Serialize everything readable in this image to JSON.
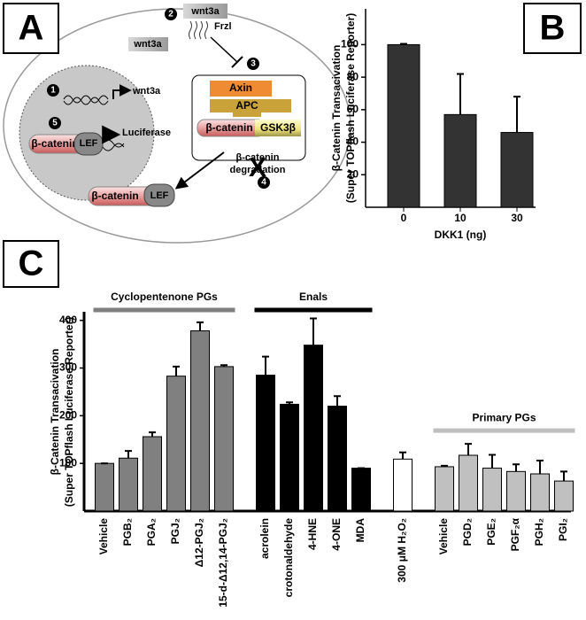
{
  "diagram": {
    "label": "A",
    "steps": [
      "1",
      "2",
      "3",
      "4",
      "5"
    ],
    "ligand_top": "wnt3a",
    "receptor": "Frzl",
    "ligand_free": "wnt3a",
    "gene": "wnt3a",
    "complex": {
      "axin": "Axin",
      "apc": "APC",
      "beta_catenin": "β-catenin",
      "gsk3b": "GSK3β"
    },
    "degradation_mark": "X",
    "degradation": [
      "β-catenin",
      "degradation"
    ],
    "nuclear": {
      "beta_catenin": "β-catenin",
      "lef": "LEF",
      "reporter": "Luciferase"
    },
    "cytoplasmic": {
      "beta_catenin": "β-catenin",
      "lef": "LEF"
    }
  },
  "chart_data": [
    {
      "type": "bar",
      "panel": "B",
      "ylabel": [
        "β-Catenin Transacivation",
        "(Super TOPflash Luciferase Reporter)"
      ],
      "xlabel": "DKK1 (ng)",
      "categories": [
        "0",
        "10",
        "30"
      ],
      "values": [
        100,
        57,
        46
      ],
      "errors": [
        0.5,
        25,
        22
      ],
      "color": "#333333",
      "ylim": [
        0,
        122
      ],
      "yticks": [
        20,
        40,
        60,
        80,
        100
      ]
    },
    {
      "type": "bar",
      "panel": "C",
      "ylabel": [
        "β-Catenin Transacivation",
        "(Super TOPflash Luciferase Reporter)"
      ],
      "categories": [
        "Vehicle",
        "PGB₂",
        "PGA₂",
        "PGJ₂",
        "Δ12-PGJ₂",
        "15-d-Δ12,14-PGJ₂",
        "acrolein",
        "crotonaldehyde",
        "4-HNE",
        "4-ONE",
        "MDA",
        "300 μM H₂O₂",
        "Vehicle",
        "PGD₂",
        "PGE₂",
        "PGF₂α",
        "PGH₂",
        "PGI₂"
      ],
      "series": [
        {
          "name": "Cyclopentenone PGs",
          "color": "#808080",
          "values": [
            100,
            111,
            156,
            283,
            378,
            303,
            null,
            null,
            null,
            null,
            null,
            null,
            null,
            null,
            null,
            null,
            null,
            null
          ],
          "errors": [
            0,
            15,
            9,
            20,
            18,
            3,
            null,
            null,
            null,
            null,
            null,
            null,
            null,
            null,
            null,
            null,
            null,
            null
          ]
        },
        {
          "name": "Enals",
          "color": "#000000",
          "values": [
            null,
            null,
            null,
            null,
            null,
            null,
            285,
            224,
            348,
            220,
            90,
            null,
            null,
            null,
            null,
            null,
            null,
            null
          ],
          "errors": [
            null,
            null,
            null,
            null,
            null,
            null,
            39,
            4,
            56,
            21,
            0,
            null,
            null,
            null,
            null,
            null,
            null,
            null
          ]
        },
        {
          "color": "#ffffff",
          "values": [
            null,
            null,
            null,
            null,
            null,
            null,
            null,
            null,
            null,
            null,
            null,
            109,
            null,
            null,
            null,
            null,
            null,
            null
          ],
          "errors": [
            null,
            null,
            null,
            null,
            null,
            null,
            null,
            null,
            null,
            null,
            null,
            14,
            null,
            null,
            null,
            null,
            null,
            null
          ]
        },
        {
          "name": "Primary PGs",
          "color": "#c0c0c0",
          "values": [
            null,
            null,
            null,
            null,
            null,
            null,
            null,
            null,
            null,
            null,
            null,
            null,
            93,
            117,
            90,
            83,
            78,
            63
          ],
          "errors": [
            null,
            null,
            null,
            null,
            null,
            null,
            null,
            null,
            null,
            null,
            null,
            null,
            2,
            24,
            28,
            15,
            28,
            20
          ]
        }
      ],
      "ylim": [
        0,
        418
      ],
      "yticks": [
        100,
        200,
        300,
        400
      ]
    }
  ]
}
